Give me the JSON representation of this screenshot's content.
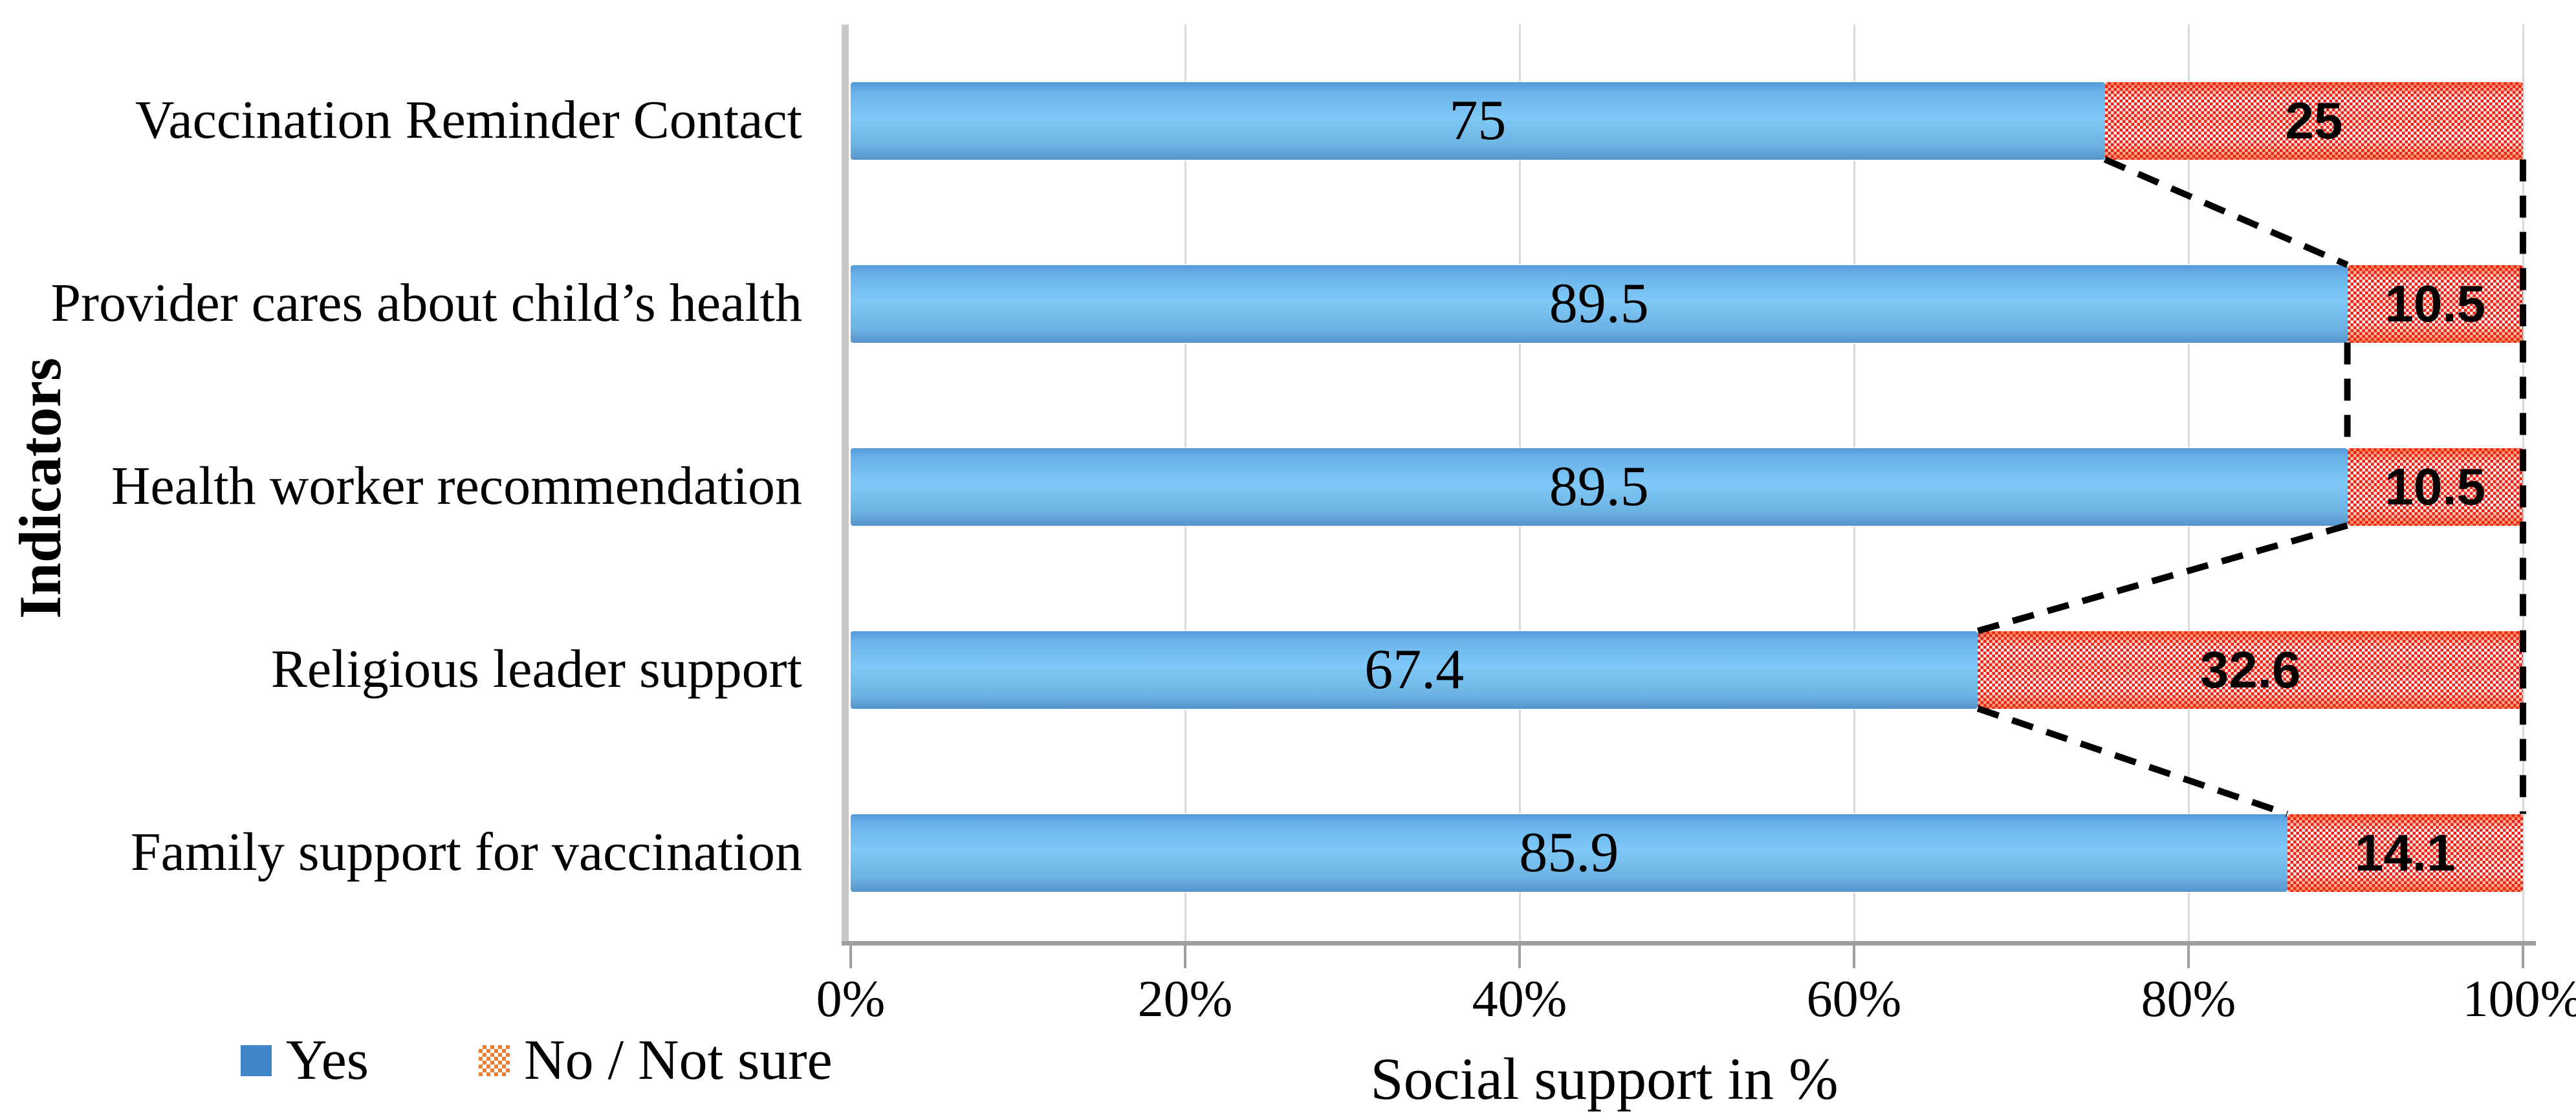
{
  "chart_data": {
    "type": "bar",
    "orientation": "horizontal",
    "stacked": true,
    "title": "",
    "xlabel": "Social support in %",
    "ylabel": "Indicators",
    "xlim": [
      0,
      100
    ],
    "xtick_labels": [
      "0%",
      "20%",
      "40%",
      "60%",
      "80%",
      "100%"
    ],
    "grid": true,
    "legend_position": "bottom-left",
    "series_lines": "dashed-black",
    "categories": [
      "Vaccination Reminder Contact",
      "Provider cares about child’s health",
      "Health worker recommendation",
      "Religious leader support",
      "Family support for vaccination"
    ],
    "series": [
      {
        "name": "Yes",
        "swatch": "solid-blue",
        "color": "#4f9ad8",
        "values": [
          75,
          89.5,
          89.5,
          67.4,
          85.9
        ],
        "labels": [
          "75",
          "89.5",
          "89.5",
          "67.4",
          "85.9"
        ]
      },
      {
        "name": "No / Not sure",
        "swatch": "checker-orange",
        "color": "#e9231b",
        "values": [
          25,
          10.5,
          10.5,
          32.6,
          14.1
        ],
        "labels": [
          "25",
          "10.5",
          "10.5",
          "32.6",
          "14.1"
        ]
      }
    ]
  },
  "colors": {
    "bar_yes_top": "#539ad9",
    "bar_yes_mid": "#7ec9f8",
    "bar_yes_bottom": "#5694cc",
    "bar_no_pattern": "#e9231b",
    "bar_no_glow": "#ff7a45",
    "legend_yes": "#3e86c8",
    "legend_no": "#ed7d31",
    "gridline": "#d9d9d9",
    "axis_line": "#9f9f9f",
    "series_line": "#000000"
  }
}
